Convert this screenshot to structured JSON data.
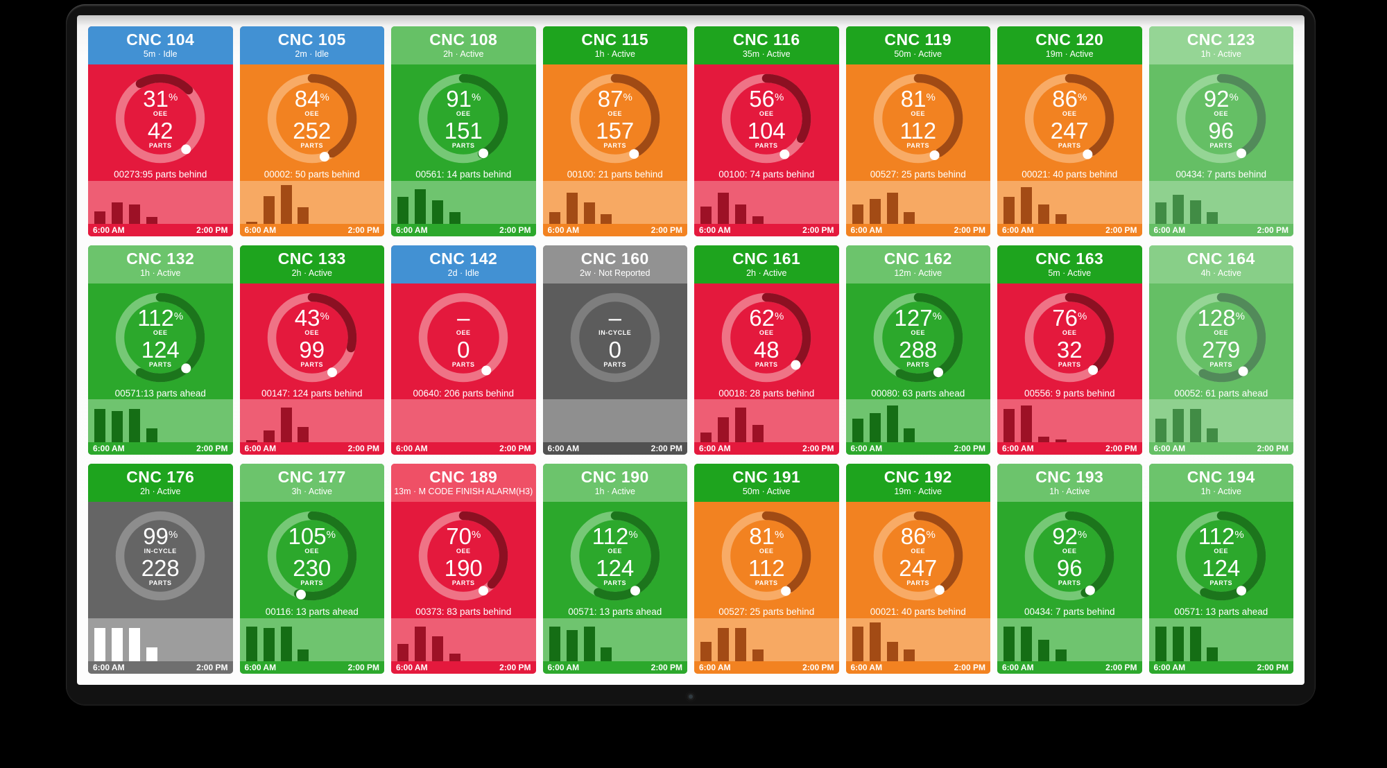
{
  "dashboard": {
    "footer_left": "6:00 AM",
    "footer_right": "2:00 PM",
    "parts_label": "PARTS",
    "oee_label": "OEE",
    "incycle_label": "IN-CYCLE"
  },
  "schemes": {
    "red": {
      "body": "#e4193d",
      "tint": "#ee5e74",
      "track": "#ef7386",
      "arc": "#8c1022",
      "bars": "#9d1126",
      "footer": "#e4193d"
    },
    "orange": {
      "body": "#f28221",
      "tint": "#f7a963",
      "track": "#f8ab66",
      "arc": "#a04a14",
      "bars": "#a34b15",
      "footer": "#f28221"
    },
    "green": {
      "body": "#2ca82c",
      "tint": "#6fc46f",
      "track": "#76c876",
      "arc": "#1c751c",
      "bars": "#156e15",
      "footer": "#2ca82c"
    },
    "lightgreen": {
      "body": "#65bf65",
      "tint": "#8fd18f",
      "track": "#95d595",
      "arc": "#528a5a",
      "bars": "#418c45",
      "footer": "#65bf65"
    },
    "gray": {
      "body": "#5c5c5c",
      "tint": "#8f8f8f",
      "track": "#7e7e7e",
      "arc": null,
      "bars": null,
      "footer": "#515151"
    },
    "darkgray": {
      "body": "#656565",
      "tint": "#9d9d9d",
      "track": "#8d8d8d",
      "arc": null,
      "bars": "#ffffff",
      "footer": "#6f6f6f"
    }
  },
  "tiles": [
    {
      "name": "CNC 104",
      "status": "5m · Idle",
      "header_color": "#4291d3",
      "scheme": "red",
      "value": "31",
      "unit": "%",
      "metric": "OEE",
      "parts": "42",
      "note": "00273:95 parts behind",
      "arc_start": -30,
      "arc_sweep": 75,
      "dot": 140,
      "bars": [
        0.33,
        0.55,
        0.5,
        0.18
      ]
    },
    {
      "name": "CNC 105",
      "status": "2m · Idle",
      "header_color": "#4291d3",
      "scheme": "orange",
      "value": "84",
      "unit": "%",
      "metric": "OEE",
      "parts": "252",
      "note": "00002: 50 parts behind",
      "arc_start": 0,
      "arc_sweep": 150,
      "dot": 162,
      "bars": [
        0.05,
        0.72,
        1.0,
        0.42
      ]
    },
    {
      "name": "CNC 108",
      "status": "2h · Active",
      "header_color": "#66c166",
      "scheme": "green",
      "value": "91",
      "unit": "%",
      "metric": "OEE",
      "parts": "151",
      "note": "00561: 14 parts behind",
      "arc_start": 0,
      "arc_sweep": 152,
      "dot": 150,
      "bars": [
        0.7,
        0.9,
        0.6,
        0.3
      ]
    },
    {
      "name": "CNC 115",
      "status": "1h · Active",
      "header_color": "#1ea41e",
      "scheme": "orange",
      "value": "87",
      "unit": "%",
      "metric": "OEE",
      "parts": "157",
      "note": "00100: 21 parts behind",
      "arc_start": 0,
      "arc_sweep": 145,
      "dot": 152,
      "bars": [
        0.3,
        0.8,
        0.55,
        0.25
      ]
    },
    {
      "name": "CNC 116",
      "status": "35m · Active",
      "header_color": "#1ea41e",
      "scheme": "red",
      "value": "56",
      "unit": "%",
      "metric": "OEE",
      "parts": "104",
      "note": "00100: 74 parts behind",
      "arc_start": 0,
      "arc_sweep": 120,
      "dot": 153,
      "bars": [
        0.45,
        0.8,
        0.5,
        0.2
      ]
    },
    {
      "name": "CNC 119",
      "status": "50m · Active",
      "header_color": "#1ea41e",
      "scheme": "orange",
      "value": "81",
      "unit": "%",
      "metric": "OEE",
      "parts": "112",
      "note": "00527: 25 parts behind",
      "arc_start": 0,
      "arc_sweep": 148,
      "dot": 156,
      "bars": [
        0.5,
        0.65,
        0.8,
        0.3
      ]
    },
    {
      "name": "CNC 120",
      "status": "19m · Active",
      "header_color": "#1ea41e",
      "scheme": "orange",
      "value": "86",
      "unit": "%",
      "metric": "OEE",
      "parts": "247",
      "note": "00021: 40 parts behind",
      "arc_start": 0,
      "arc_sweep": 145,
      "dot": 153,
      "bars": [
        0.7,
        0.95,
        0.5,
        0.25
      ]
    },
    {
      "name": "CNC 123",
      "status": "1h · Active",
      "header_color": "#95d595",
      "scheme": "lightgreen",
      "value": "92",
      "unit": "%",
      "metric": "OEE",
      "parts": "96",
      "note": "00434: 7 parts behind",
      "arc_start": 0,
      "arc_sweep": 150,
      "dot": 150,
      "bars": [
        0.55,
        0.75,
        0.6,
        0.3
      ]
    },
    {
      "name": "CNC 132",
      "status": "1h · Active",
      "header_color": "#6cc46c",
      "scheme": "green",
      "value": "112",
      "unit": "%",
      "metric": "OEE",
      "parts": "124",
      "note": "00571:13 parts ahead",
      "arc_start": 0,
      "arc_sweep": 210,
      "dot": 140,
      "bars": [
        0.85,
        0.8,
        0.85,
        0.35
      ]
    },
    {
      "name": "CNC 133",
      "status": "2h · Active",
      "header_color": "#1ea41e",
      "scheme": "red",
      "value": "43",
      "unit": "%",
      "metric": "OEE",
      "parts": "99",
      "note": "00147: 124 parts behind",
      "arc_start": 0,
      "arc_sweep": 105,
      "dot": 150,
      "bars": [
        0.05,
        0.3,
        0.9,
        0.4
      ]
    },
    {
      "name": "CNC 142",
      "status": "2d · Idle",
      "header_color": "#4291d3",
      "scheme": "red",
      "value": "–",
      "unit": "",
      "metric": "OEE",
      "parts": "0",
      "note": "00640: 206 parts behind",
      "arc_start": 0,
      "arc_sweep": 0,
      "dot": 145,
      "bars": []
    },
    {
      "name": "CNC 160",
      "status": "2w · Not Reported",
      "header_color": "#929292",
      "scheme": "gray",
      "value": "–",
      "unit": "",
      "metric": "IN-CYCLE",
      "parts": "0",
      "note": "",
      "arc_start": 0,
      "arc_sweep": 0,
      "dot": null,
      "bars": []
    },
    {
      "name": "CNC 161",
      "status": "2h · Active",
      "header_color": "#1ea41e",
      "scheme": "red",
      "value": "62",
      "unit": "%",
      "metric": "OEE",
      "parts": "48",
      "note": "00018: 28 parts behind",
      "arc_start": 0,
      "arc_sweep": 128,
      "dot": 133,
      "bars": [
        0.25,
        0.65,
        0.9,
        0.45
      ]
    },
    {
      "name": "CNC 162",
      "status": "12m · Active",
      "header_color": "#6cc46c",
      "scheme": "green",
      "value": "127",
      "unit": "%",
      "metric": "OEE",
      "parts": "288",
      "note": "00080: 63 parts ahead",
      "arc_start": 0,
      "arc_sweep": 207,
      "dot": 150,
      "bars": [
        0.6,
        0.75,
        0.95,
        0.35
      ]
    },
    {
      "name": "CNC 163",
      "status": "5m · Active",
      "header_color": "#1ea41e",
      "scheme": "red",
      "value": "76",
      "unit": "%",
      "metric": "OEE",
      "parts": "32",
      "note": "00556: 9 parts behind",
      "arc_start": 0,
      "arc_sweep": 138,
      "dot": 144,
      "bars": [
        0.85,
        0.95,
        0.15,
        0.08
      ]
    },
    {
      "name": "CNC 164",
      "status": "4h · Active",
      "header_color": "#88cf88",
      "scheme": "lightgreen",
      "value": "128",
      "unit": "%",
      "metric": "OEE",
      "parts": "279",
      "note": "00052: 61 parts ahead",
      "arc_start": 0,
      "arc_sweep": 207,
      "dot": 147,
      "bars": [
        0.6,
        0.85,
        0.85,
        0.35
      ]
    },
    {
      "name": "CNC 176",
      "status": "2h · Active",
      "header_color": "#1ea41e",
      "scheme": "darkgray",
      "value": "99",
      "unit": "%",
      "metric": "IN-CYCLE",
      "parts": "228",
      "note": "",
      "arc_start": 0,
      "arc_sweep": 0,
      "dot": null,
      "bars": [
        0.85,
        0.85,
        0.85,
        0.35
      ]
    },
    {
      "name": "CNC 177",
      "status": "3h · Active",
      "header_color": "#6cc46c",
      "scheme": "green",
      "value": "105",
      "unit": "%",
      "metric": "OEE",
      "parts": "230",
      "note": "00116: 13 parts ahead",
      "arc_start": 0,
      "arc_sweep": 200,
      "dot": 196,
      "bars": [
        0.9,
        0.85,
        0.9,
        0.3
      ]
    },
    {
      "name": "CNC 189",
      "status": "13m · M CODE FINISH ALARM(H3)",
      "header_color": "#ef5066",
      "scheme": "red",
      "value": "70",
      "unit": "%",
      "metric": "OEE",
      "parts": "190",
      "note": "00373: 83 parts behind",
      "arc_start": 0,
      "arc_sweep": 135,
      "dot": 150,
      "bars": [
        0.45,
        0.9,
        0.65,
        0.2
      ]
    },
    {
      "name": "CNC 190",
      "status": "1h · Active",
      "header_color": "#6cc46c",
      "scheme": "green",
      "value": "112",
      "unit": "%",
      "metric": "OEE",
      "parts": "124",
      "note": "00571: 13 parts ahead",
      "arc_start": 0,
      "arc_sweep": 205,
      "dot": 150,
      "bars": [
        0.9,
        0.8,
        0.9,
        0.35
      ]
    },
    {
      "name": "CNC 191",
      "status": "50m · Active",
      "header_color": "#1ea41e",
      "scheme": "orange",
      "value": "81",
      "unit": "%",
      "metric": "OEE",
      "parts": "112",
      "note": "00527: 25 parts behind",
      "arc_start": 0,
      "arc_sweep": 143,
      "dot": 151,
      "bars": [
        0.5,
        0.85,
        0.85,
        0.3
      ]
    },
    {
      "name": "CNC 192",
      "status": "19m · Active",
      "header_color": "#1ea41e",
      "scheme": "orange",
      "value": "86",
      "unit": "%",
      "metric": "OEE",
      "parts": "247",
      "note": "00021: 40 parts behind",
      "arc_start": 0,
      "arc_sweep": 140,
      "dot": 148,
      "bars": [
        0.9,
        1.0,
        0.5,
        0.3
      ]
    },
    {
      "name": "CNC 193",
      "status": "1h · Active",
      "header_color": "#6cc46c",
      "scheme": "green",
      "value": "92",
      "unit": "%",
      "metric": "OEE",
      "parts": "96",
      "note": "00434: 7 parts behind",
      "arc_start": 0,
      "arc_sweep": 157,
      "dot": 149,
      "bars": [
        0.9,
        0.9,
        0.55,
        0.3
      ]
    },
    {
      "name": "CNC 194",
      "status": "1h · Active",
      "header_color": "#6cc46c",
      "scheme": "green",
      "value": "112",
      "unit": "%",
      "metric": "OEE",
      "parts": "124",
      "note": "00571: 13 parts ahead",
      "arc_start": 0,
      "arc_sweep": 205,
      "dot": 150,
      "bars": [
        0.9,
        0.9,
        0.9,
        0.35
      ]
    }
  ]
}
